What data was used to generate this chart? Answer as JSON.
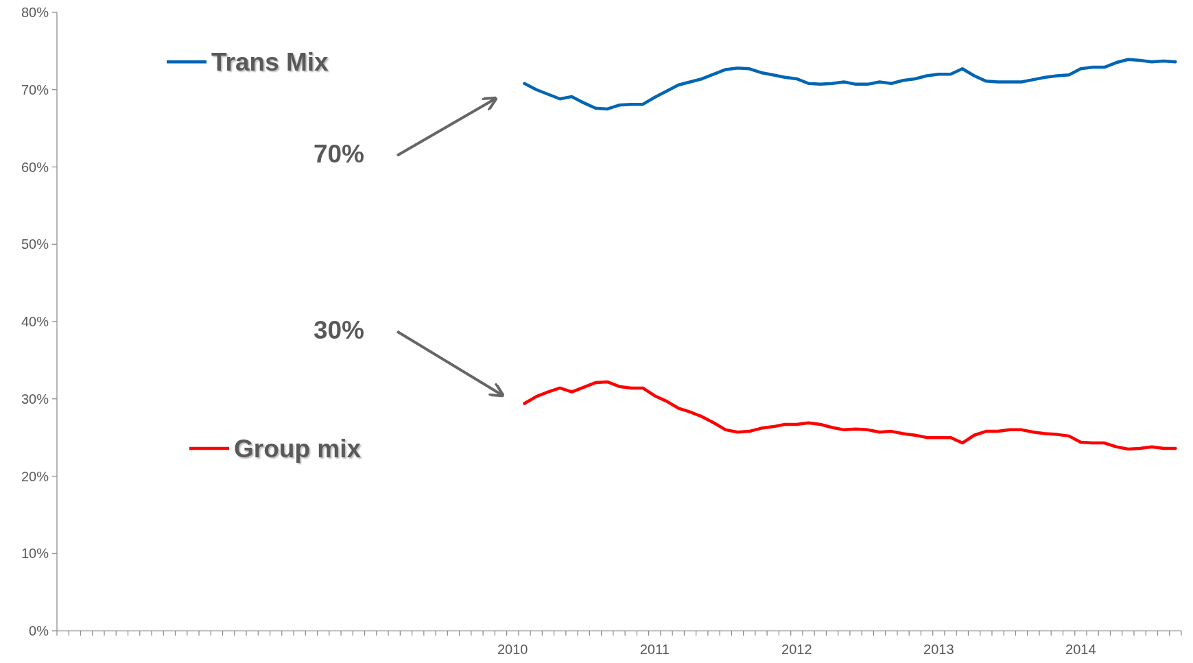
{
  "chart_data": {
    "type": "line",
    "categories": [
      null,
      null,
      null,
      null,
      null,
      null,
      null,
      null,
      null,
      null,
      null,
      null,
      null,
      null,
      null,
      null,
      null,
      null,
      null,
      null,
      null,
      null,
      null,
      null,
      null,
      null,
      null,
      null,
      null,
      null,
      null,
      null,
      null,
      null,
      null,
      null,
      null,
      null,
      "2010",
      null,
      null,
      null,
      null,
      null,
      null,
      null,
      null,
      null,
      null,
      null,
      "2011",
      null,
      null,
      null,
      null,
      null,
      null,
      null,
      null,
      null,
      null,
      null,
      "2012",
      null,
      null,
      null,
      null,
      null,
      null,
      null,
      null,
      null,
      null,
      null,
      "2013",
      null,
      null,
      null,
      null,
      null,
      null,
      null,
      null,
      null,
      null,
      null,
      "2014",
      null,
      null,
      null,
      null,
      null,
      null,
      null,
      null
    ],
    "series": [
      {
        "name": "Trans Mix",
        "color": "#0066b3",
        "values": [
          null,
          null,
          null,
          null,
          null,
          null,
          null,
          null,
          null,
          null,
          null,
          null,
          null,
          null,
          null,
          null,
          null,
          null,
          null,
          null,
          null,
          null,
          null,
          null,
          null,
          null,
          null,
          null,
          null,
          null,
          null,
          null,
          null,
          null,
          null,
          null,
          null,
          null,
          null,
          70.8,
          70.0,
          69.4,
          68.8,
          69.1,
          68.3,
          67.6,
          67.5,
          68.0,
          68.1,
          68.1,
          69.0,
          69.8,
          70.6,
          71.0,
          71.4,
          72.0,
          72.6,
          72.8,
          72.7,
          72.2,
          71.9,
          71.6,
          71.4,
          70.8,
          70.7,
          70.8,
          71.0,
          70.7,
          70.7,
          71.0,
          70.8,
          71.2,
          71.4,
          71.8,
          72.0,
          72.0,
          72.7,
          71.8,
          71.1,
          71.0,
          71.0,
          71.0,
          71.3,
          71.6,
          71.8,
          71.9,
          72.7,
          72.9,
          72.9,
          73.5,
          73.9,
          73.8,
          73.6,
          73.7,
          73.6
        ]
      },
      {
        "name": "Group mix",
        "color": "#ff0000",
        "values": [
          null,
          null,
          null,
          null,
          null,
          null,
          null,
          null,
          null,
          null,
          null,
          null,
          null,
          null,
          null,
          null,
          null,
          null,
          null,
          null,
          null,
          null,
          null,
          null,
          null,
          null,
          null,
          null,
          null,
          null,
          null,
          null,
          null,
          null,
          null,
          null,
          null,
          null,
          null,
          29.4,
          30.3,
          30.9,
          31.4,
          30.9,
          31.5,
          32.1,
          32.2,
          31.6,
          31.4,
          31.4,
          30.4,
          29.7,
          28.8,
          28.3,
          27.7,
          26.9,
          26.0,
          25.7,
          25.8,
          26.2,
          26.4,
          26.7,
          26.7,
          26.9,
          26.7,
          26.3,
          26.0,
          26.1,
          26.0,
          25.7,
          25.8,
          25.5,
          25.3,
          25.0,
          25.0,
          25.0,
          24.3,
          25.3,
          25.8,
          25.8,
          26.0,
          26.0,
          25.7,
          25.5,
          25.4,
          25.2,
          24.4,
          24.3,
          24.3,
          23.8,
          23.5,
          23.6,
          23.8,
          23.6,
          23.6
        ]
      }
    ],
    "ylim": [
      0,
      80
    ],
    "yticks": [
      {
        "value": 0,
        "label": "0%"
      },
      {
        "value": 10,
        "label": "10%"
      },
      {
        "value": 20,
        "label": "20%"
      },
      {
        "value": 30,
        "label": "30%"
      },
      {
        "value": 40,
        "label": "40%"
      },
      {
        "value": 50,
        "label": "50%"
      },
      {
        "value": 60,
        "label": "60%"
      },
      {
        "value": 70,
        "label": "70%"
      },
      {
        "value": 80,
        "label": "80%"
      }
    ],
    "annotations": [
      "70%",
      "30%"
    ],
    "legend": "left",
    "grid": false
  }
}
